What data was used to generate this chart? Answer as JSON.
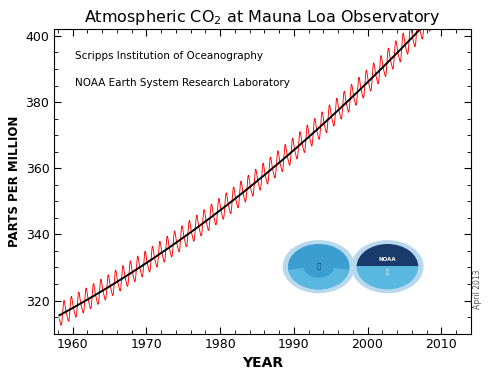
{
  "title": "Atmospheric CO$_2$ at Mauna Loa Observatory",
  "xlabel": "YEAR",
  "ylabel": "PARTS PER MILLION",
  "annotation_line1": "Scripps Institution of Oceanography",
  "annotation_line2": "NOAA Earth System Research Laboratory",
  "watermark": "April 2013",
  "xlim": [
    1957.5,
    2014.0
  ],
  "ylim": [
    310,
    402
  ],
  "yticks": [
    320,
    340,
    360,
    380,
    400
  ],
  "xticks": [
    1960,
    1970,
    1980,
    1990,
    2000,
    2010
  ],
  "trend_color": "#000000",
  "seasonal_color": "#ff0000",
  "background_color": "#ffffff",
  "trend_linewidth": 1.4,
  "seasonal_linewidth": 0.65
}
